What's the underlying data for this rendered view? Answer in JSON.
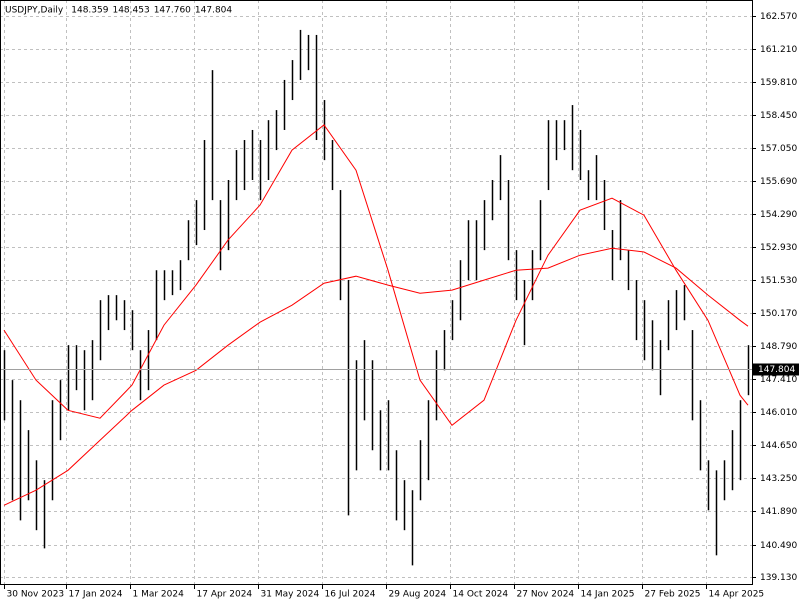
{
  "chart_data": {
    "type": "hl-bars",
    "title": "USDJPY,Daily",
    "header_values": [
      "148.359",
      "148.453",
      "147.760",
      "147.804"
    ],
    "color": "#000000",
    "high": [
      148.61,
      147.36,
      146.52,
      145.27,
      144.01,
      143.18,
      146.52,
      147.36,
      148.82,
      148.82,
      148.61,
      149.03,
      150.7,
      150.91,
      150.91,
      150.7,
      150.28,
      148.61,
      149.45,
      151.95,
      151.95,
      151.95,
      152.37,
      154.04,
      154.88,
      157.39,
      160.31,
      154.88,
      155.72,
      156.97,
      157.39,
      157.81,
      157.39,
      158.22,
      158.64,
      159.9,
      160.73,
      161.99,
      161.78,
      161.78,
      159.06,
      157.39,
      155.3,
      151.54,
      148.19,
      149.03,
      148.19,
      146.1,
      146.52,
      144.43,
      143.18,
      142.76,
      144.85,
      146.52,
      148.61,
      149.45,
      150.7,
      152.37,
      154.04,
      154.04,
      154.88,
      155.72,
      156.76,
      155.72,
      152.79,
      151.54,
      152.79,
      154.88,
      158.22,
      158.22,
      158.22,
      158.85,
      157.81,
      156.13,
      156.76,
      155.72,
      153.63,
      154.88,
      152.79,
      151.54,
      150.7,
      149.86,
      149.03,
      150.7,
      151.12,
      151.33,
      149.45,
      146.52,
      144.01,
      143.59,
      144.01,
      145.27,
      146.52,
      148.82
    ],
    "low": [
      145.68,
      142.34,
      141.5,
      142.34,
      141.09,
      140.33,
      142.34,
      144.85,
      146.1,
      146.94,
      146.1,
      146.52,
      148.19,
      149.45,
      149.86,
      149.45,
      148.61,
      146.52,
      146.94,
      149.03,
      150.7,
      150.91,
      151.12,
      152.37,
      153.0,
      153.63,
      154.88,
      151.95,
      152.79,
      154.88,
      155.3,
      155.72,
      154.88,
      155.72,
      156.97,
      157.81,
      159.06,
      159.9,
      160.31,
      157.39,
      156.55,
      155.3,
      150.7,
      141.71,
      143.59,
      145.68,
      144.43,
      143.59,
      143.59,
      141.5,
      141.09,
      139.62,
      142.34,
      143.18,
      145.68,
      147.77,
      149.03,
      149.86,
      151.54,
      151.54,
      152.79,
      154.04,
      154.88,
      152.37,
      150.7,
      148.82,
      150.7,
      152.37,
      155.3,
      156.55,
      156.97,
      156.13,
      155.72,
      154.88,
      154.88,
      153.63,
      151.54,
      152.37,
      151.12,
      149.03,
      148.19,
      147.77,
      146.73,
      148.61,
      149.45,
      149.86,
      145.68,
      143.59,
      141.92,
      140.04,
      142.34,
      142.76,
      143.18,
      146.73
    ],
    "moving_averages": [
      {
        "color": "#ff0000",
        "x": [
          0,
          4,
          8,
          12,
          16,
          20,
          24,
          28,
          32,
          36,
          40,
          44,
          48,
          52,
          56,
          60,
          64,
          68,
          72,
          76,
          80,
          84,
          88,
          92,
          93
        ],
        "values": [
          149.45,
          147.36,
          146.1,
          145.77,
          147.15,
          149.66,
          151.33,
          153.21,
          154.67,
          156.97,
          158.02,
          156.13,
          151.95,
          147.36,
          145.47,
          146.52,
          149.86,
          152.58,
          154.46,
          154.96,
          154.25,
          151.95,
          149.86,
          146.73,
          146.31
        ]
      },
      {
        "color": "#ff0000",
        "x": [
          0,
          4,
          8,
          12,
          16,
          20,
          24,
          28,
          32,
          36,
          40,
          44,
          48,
          52,
          56,
          60,
          64,
          68,
          72,
          76,
          80,
          84,
          88,
          92,
          93
        ],
        "values": [
          142.13,
          142.76,
          143.59,
          144.85,
          146.1,
          147.15,
          147.77,
          148.82,
          149.78,
          150.49,
          151.41,
          151.7,
          151.33,
          150.99,
          151.12,
          151.54,
          151.95,
          152.04,
          152.58,
          152.87,
          152.71,
          152.04,
          150.91,
          149.86,
          149.61
        ]
      }
    ],
    "last_price": {
      "value": 147.804,
      "label": "147.804"
    },
    "xlim": [
      -0.5,
      93.5
    ],
    "xticks": [
      {
        "value": 0,
        "label": "30 Nov 2023"
      },
      {
        "value": 7.75,
        "label": "17 Jan 2024"
      },
      {
        "value": 15.75,
        "label": "1 Mar 2024"
      },
      {
        "value": 23.75,
        "label": "17 Apr 2024"
      },
      {
        "value": 31.75,
        "label": "31 May 2024"
      },
      {
        "value": 39.75,
        "label": "16 Jul 2024"
      },
      {
        "value": 47.75,
        "label": "29 Aug 2024"
      },
      {
        "value": 55.75,
        "label": "14 Oct 2024"
      },
      {
        "value": 63.75,
        "label": "27 Nov 2024"
      },
      {
        "value": 71.75,
        "label": "14 Jan 2025"
      },
      {
        "value": 79.75,
        "label": "27 Feb 2025"
      },
      {
        "value": 87.75,
        "label": "14 Apr 2025"
      }
    ],
    "ylim": [
      138.8,
      163.24
    ],
    "yticks": [
      {
        "value": 162.57,
        "label": "162.570"
      },
      {
        "value": 161.21,
        "label": "161.210"
      },
      {
        "value": 159.81,
        "label": "159.810"
      },
      {
        "value": 158.45,
        "label": "158.450"
      },
      {
        "value": 157.05,
        "label": "157.050"
      },
      {
        "value": 155.69,
        "label": "155.690"
      },
      {
        "value": 154.29,
        "label": "154.290"
      },
      {
        "value": 152.93,
        "label": "152.930"
      },
      {
        "value": 151.53,
        "label": "151.530"
      },
      {
        "value": 150.17,
        "label": "150.170"
      },
      {
        "value": 148.79,
        "label": "148.790"
      },
      {
        "value": 147.41,
        "label": "147.410"
      },
      {
        "value": 146.01,
        "label": "146.010"
      },
      {
        "value": 144.65,
        "label": "144.650"
      },
      {
        "value": 143.25,
        "label": "143.250"
      },
      {
        "value": 141.89,
        "label": "141.890"
      },
      {
        "value": 140.49,
        "label": "140.490"
      },
      {
        "value": 139.13,
        "label": "139.130"
      }
    ],
    "grid": true
  }
}
